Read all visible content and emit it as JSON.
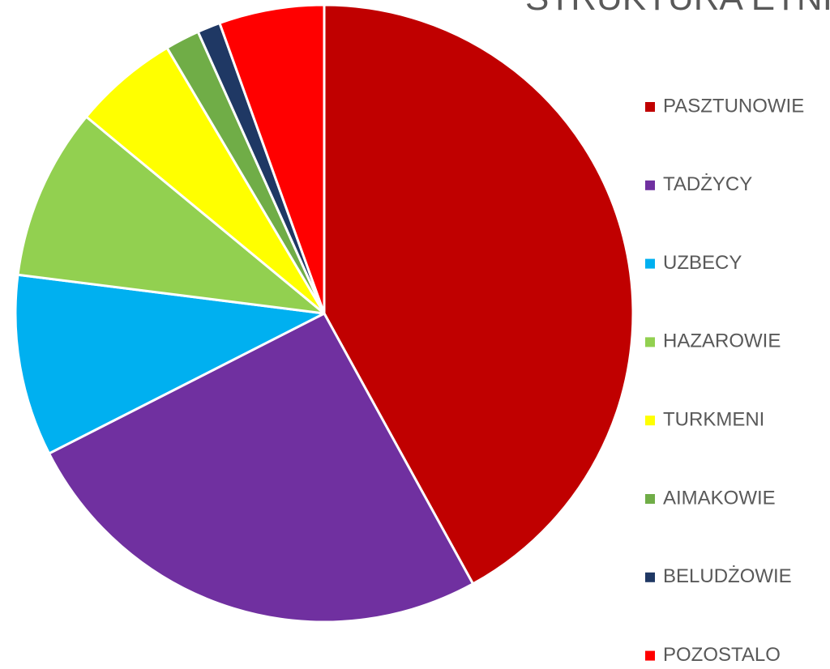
{
  "chart_data": {
    "type": "pie",
    "title": "STRUKTURA ETNICZNA",
    "categories": [
      "PASZTUNOWIE",
      "TADŻYCY",
      "UZBECY",
      "HAZAROWIE",
      "TURKMENI",
      "AIMAKOWIE",
      "BELUDŻOWIE",
      "POZOSTALO"
    ],
    "values": [
      42,
      25.5,
      9.5,
      9,
      5.5,
      1.8,
      1.2,
      5.5
    ],
    "colors": [
      "#c00000",
      "#7030a0",
      "#00b0f0",
      "#92d050",
      "#ffff00",
      "#70ad47",
      "#1f3864",
      "#ff0000"
    ],
    "legend": "right"
  }
}
